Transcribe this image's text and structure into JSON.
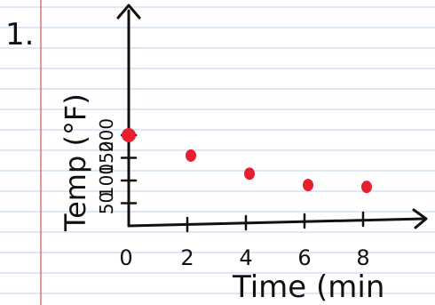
{
  "page": {
    "problem_number": "1.",
    "paper_line_color": "#b9d2ec",
    "margin_line_color": "#e0707a",
    "ink_color": "#111111",
    "point_color": "#e8202e"
  },
  "chart_data": {
    "type": "scatter",
    "title": "",
    "xlabel": "Time (min",
    "ylabel": "Temp (°F)",
    "x_ticks": [
      {
        "value": 0,
        "label": "0"
      },
      {
        "value": 2,
        "label": "2"
      },
      {
        "value": 4,
        "label": "4"
      },
      {
        "value": 6,
        "label": "6"
      },
      {
        "value": 8,
        "label": "8"
      }
    ],
    "y_ticks": [
      {
        "value": 50,
        "label": "50"
      },
      {
        "value": 100,
        "label": "100"
      },
      {
        "value": 150,
        "label": "150"
      },
      {
        "value": 200,
        "label": "200"
      }
    ],
    "xlim": [
      0,
      10
    ],
    "ylim": [
      0,
      220
    ],
    "grid": false,
    "points": [
      {
        "x": 0,
        "y": 200
      },
      {
        "x": 2,
        "y": 155
      },
      {
        "x": 4,
        "y": 115
      },
      {
        "x": 6,
        "y": 90
      },
      {
        "x": 8,
        "y": 86
      }
    ]
  }
}
